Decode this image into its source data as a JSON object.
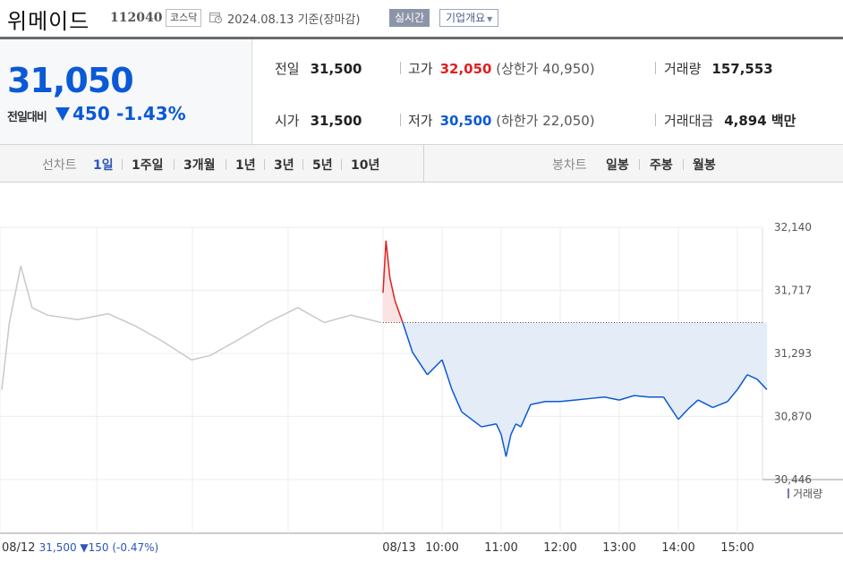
{
  "header": {
    "company": "위메이드",
    "code": "112040",
    "market": "코스닥",
    "date": "2024.08.13 기준(장마감)",
    "realtime_label": "실시간",
    "overview_label": "기업개요"
  },
  "price": {
    "current": "31,050",
    "change_label": "전일대비",
    "change": "450",
    "change_rate": "-1.43%"
  },
  "stats": {
    "prev_close_label": "전일",
    "prev_close": "31,500",
    "high_label": "고가",
    "high": "32,050",
    "upper_limit": "(상한가 40,950)",
    "volume_label": "거래량",
    "volume": "157,553",
    "open_label": "시가",
    "open": "31,500",
    "low_label": "저가",
    "low": "30,500",
    "lower_limit": "(하한가 22,050)",
    "amount_label": "거래대금",
    "amount": "4,894 백만"
  },
  "tabs": {
    "line_label": "선차트",
    "line_periods": [
      "1일",
      "1주일",
      "3개월",
      "1년",
      "3년",
      "5년",
      "10년"
    ],
    "candle_label": "봉차트",
    "candle_periods": [
      "일봉",
      "주봉",
      "월봉"
    ],
    "active": "1일"
  },
  "colors": {
    "up": "#e02020",
    "down": "#0a59d6",
    "prev_day_line": "#c8c8c8",
    "fill": "#e4ecf8",
    "volume": "#8a6fb0"
  },
  "chart_data": {
    "type": "line",
    "ylim": [
      30446,
      32140
    ],
    "y_ticks": [
      "32,140",
      "31,717",
      "31,293",
      "30,870",
      "30,446"
    ],
    "x_ticks": [
      "08/13",
      "10:00",
      "11:00",
      "12:00",
      "13:00",
      "14:00",
      "15:00"
    ],
    "baseline": 31500,
    "prev_day": {
      "label": "08/12",
      "x": [
        0,
        0.02,
        0.05,
        0.08,
        0.12,
        0.2,
        0.28,
        0.35,
        0.42,
        0.5,
        0.55,
        0.62,
        0.7,
        0.78,
        0.85,
        0.92,
        1.0
      ],
      "y": [
        31050,
        31500,
        31880,
        31600,
        31550,
        31520,
        31560,
        31480,
        31380,
        31250,
        31280,
        31380,
        31500,
        31600,
        31500,
        31550,
        31500
      ]
    },
    "today": {
      "label": "08/13",
      "x": [
        "09:00",
        "09:03",
        "09:07",
        "09:12",
        "09:20",
        "09:30",
        "09:45",
        "10:00",
        "10:10",
        "10:20",
        "10:40",
        "10:55",
        "11:00",
        "11:05",
        "11:10",
        "11:15",
        "11:20",
        "11:30",
        "11:45",
        "12:00",
        "12:15",
        "12:30",
        "12:45",
        "13:00",
        "13:15",
        "13:30",
        "13:45",
        "14:00",
        "14:10",
        "14:20",
        "14:35",
        "14:50",
        "15:00",
        "15:10",
        "15:20",
        "15:30"
      ],
      "y": [
        31700,
        32050,
        31800,
        31650,
        31500,
        31300,
        31150,
        31250,
        31050,
        30900,
        30800,
        30820,
        30750,
        30600,
        30750,
        30820,
        30800,
        30950,
        30970,
        30970,
        30980,
        30990,
        31000,
        30980,
        31010,
        31000,
        31000,
        30850,
        30920,
        30980,
        30930,
        30970,
        31050,
        31150,
        31120,
        31050
      ]
    },
    "volume_label": "거래량",
    "footer": {
      "date": "08/12",
      "price": "31,500",
      "change": "▼150",
      "rate": "(-0.47%)"
    }
  }
}
